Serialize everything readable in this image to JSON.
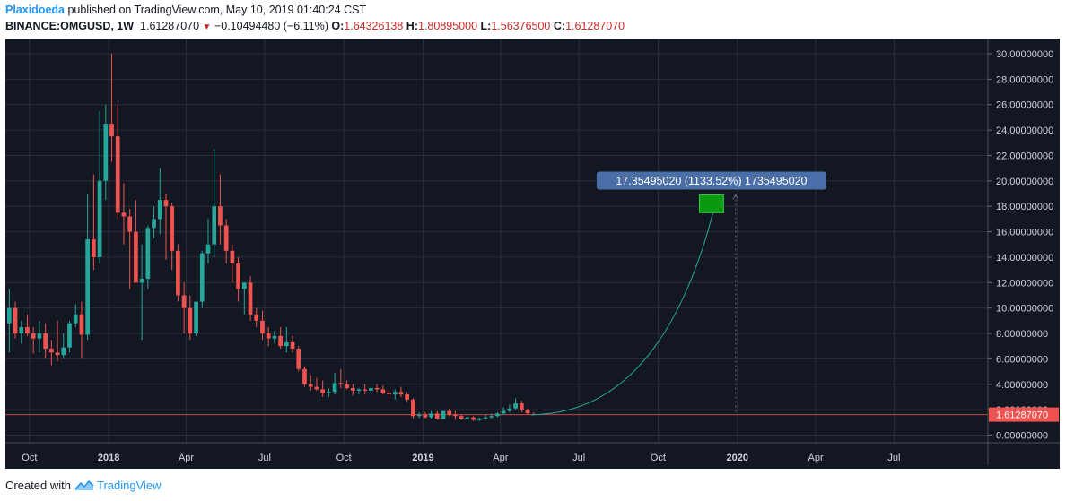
{
  "header": {
    "author": "Plaxidoeda",
    "published_text": "published on TradingView.com, May 10, 2019 01:40:24 CST",
    "symbol": "BINANCE:OMGUSD, 1W",
    "last_price": "1.61287070",
    "change_arrow": "▼",
    "change": "−0.10494480 (−6.11%)",
    "open_label": "O:",
    "open": "1.64326138",
    "high_label": "H:",
    "high": "1.80895000",
    "low_label": "L:",
    "low": "1.56376500",
    "close_label": "C:",
    "close": "1.61287070"
  },
  "footer": {
    "created_with": "Created with",
    "brand": "TradingView"
  },
  "colors": {
    "background": "#131722",
    "grid": "#2a2e39",
    "up": "#26a69a",
    "down": "#ef5350",
    "price_line": "#ef5350",
    "curve": "#26a69a",
    "target_box": "#0a9a12",
    "label_box": "#4a6ea8",
    "axis_text": "#d1d4dc"
  },
  "chart_data": {
    "type": "candlestick",
    "title": "",
    "xlabel": "",
    "ylabel": "",
    "ylim": [
      -0.6,
      31.2
    ],
    "y_ticks": [
      "30.00000000",
      "28.00000000",
      "26.00000000",
      "24.00000000",
      "22.00000000",
      "20.00000000",
      "18.00000000",
      "16.00000000",
      "14.00000000",
      "12.00000000",
      "10.00000000",
      "8.00000000",
      "6.00000000",
      "4.00000000",
      "2.00000000",
      "0.00000000"
    ],
    "y_tick_values": [
      30,
      28,
      26,
      24,
      22,
      20,
      18,
      16,
      14,
      12,
      10,
      8,
      6,
      4,
      2,
      0
    ],
    "x_ticks": [
      "Oct",
      "2018",
      "Apr",
      "Jul",
      "Oct",
      "2019",
      "Apr",
      "Jul",
      "Oct",
      "2020",
      "Apr",
      "Jul"
    ],
    "x_tick_dates": [
      "2017-10-01",
      "2018-01-01",
      "2018-04-01",
      "2018-07-01",
      "2018-10-01",
      "2019-01-01",
      "2019-04-01",
      "2019-07-01",
      "2019-10-01",
      "2020-01-01",
      "2020-04-01",
      "2020-07-01"
    ],
    "x_tick_bold": [
      false,
      true,
      false,
      false,
      false,
      true,
      false,
      false,
      false,
      true,
      false,
      false
    ],
    "x_range": [
      "2017-09-03",
      "2020-10-18"
    ],
    "current_price": 1.6128707,
    "current_price_label": "1.61287070",
    "projection": {
      "from": {
        "date": "2019-05-06",
        "value": 1.61
      },
      "to": {
        "date": "2019-12-09",
        "value": 18.9
      },
      "target_box": {
        "date_start": "2019-11-18",
        "date_end": "2019-12-16",
        "low": 17.5,
        "high": 18.9
      },
      "dashed_line_date": "2019-12-30",
      "label": "17.35495020 (1133.52%) 1735495020"
    },
    "candles": [
      {
        "date": "2017-09-04",
        "o": 8.8,
        "h": 11.5,
        "l": 6.5,
        "c": 10.0
      },
      {
        "date": "2017-09-11",
        "o": 10.0,
        "h": 10.5,
        "l": 7.6,
        "c": 8.0
      },
      {
        "date": "2017-09-18",
        "o": 8.0,
        "h": 9.0,
        "l": 7.2,
        "c": 8.5
      },
      {
        "date": "2017-09-25",
        "o": 8.5,
        "h": 9.5,
        "l": 7.8,
        "c": 8.0
      },
      {
        "date": "2017-10-02",
        "o": 8.0,
        "h": 8.5,
        "l": 6.4,
        "c": 7.6
      },
      {
        "date": "2017-10-09",
        "o": 7.6,
        "h": 9.0,
        "l": 6.5,
        "c": 8.0
      },
      {
        "date": "2017-10-16",
        "o": 8.0,
        "h": 8.8,
        "l": 6.0,
        "c": 6.8
      },
      {
        "date": "2017-10-23",
        "o": 6.8,
        "h": 7.5,
        "l": 5.5,
        "c": 6.5
      },
      {
        "date": "2017-10-30",
        "o": 6.5,
        "h": 9.0,
        "l": 5.8,
        "c": 6.3
      },
      {
        "date": "2017-11-06",
        "o": 6.3,
        "h": 8.0,
        "l": 6.0,
        "c": 6.9
      },
      {
        "date": "2017-11-13",
        "o": 6.9,
        "h": 9.0,
        "l": 6.5,
        "c": 8.8
      },
      {
        "date": "2017-11-20",
        "o": 8.8,
        "h": 10.3,
        "l": 8.5,
        "c": 9.5
      },
      {
        "date": "2017-11-27",
        "o": 9.5,
        "h": 10.5,
        "l": 6.0,
        "c": 7.9
      },
      {
        "date": "2017-12-04",
        "o": 7.9,
        "h": 19.0,
        "l": 7.5,
        "c": 15.4
      },
      {
        "date": "2017-12-11",
        "o": 15.4,
        "h": 20.5,
        "l": 13.0,
        "c": 14.0
      },
      {
        "date": "2017-12-18",
        "o": 14.0,
        "h": 25.5,
        "l": 13.5,
        "c": 20.0
      },
      {
        "date": "2017-12-25",
        "o": 20.0,
        "h": 26.0,
        "l": 18.5,
        "c": 24.5
      },
      {
        "date": "2018-01-01",
        "o": 24.5,
        "h": 30.0,
        "l": 21.5,
        "c": 23.5
      },
      {
        "date": "2018-01-08",
        "o": 23.5,
        "h": 26.0,
        "l": 17.0,
        "c": 17.5
      },
      {
        "date": "2018-01-15",
        "o": 17.5,
        "h": 19.8,
        "l": 15.0,
        "c": 17.2
      },
      {
        "date": "2018-01-22",
        "o": 17.2,
        "h": 17.8,
        "l": 11.5,
        "c": 16.0
      },
      {
        "date": "2018-01-29",
        "o": 16.0,
        "h": 18.5,
        "l": 12.0,
        "c": 12.0
      },
      {
        "date": "2018-02-05",
        "o": 12.0,
        "h": 15.0,
        "l": 7.5,
        "c": 12.3
      },
      {
        "date": "2018-02-12",
        "o": 12.3,
        "h": 16.5,
        "l": 11.5,
        "c": 16.3
      },
      {
        "date": "2018-02-19",
        "o": 16.3,
        "h": 18.0,
        "l": 15.5,
        "c": 17.0
      },
      {
        "date": "2018-02-26",
        "o": 17.0,
        "h": 21.0,
        "l": 15.8,
        "c": 18.5
      },
      {
        "date": "2018-03-05",
        "o": 18.5,
        "h": 19.0,
        "l": 13.8,
        "c": 18.0
      },
      {
        "date": "2018-03-12",
        "o": 18.0,
        "h": 18.3,
        "l": 13.0,
        "c": 14.5
      },
      {
        "date": "2018-03-19",
        "o": 14.5,
        "h": 15.0,
        "l": 10.5,
        "c": 11.0
      },
      {
        "date": "2018-03-26",
        "o": 11.0,
        "h": 12.0,
        "l": 8.0,
        "c": 10.0
      },
      {
        "date": "2018-04-02",
        "o": 10.0,
        "h": 11.0,
        "l": 7.5,
        "c": 8.0
      },
      {
        "date": "2018-04-09",
        "o": 8.0,
        "h": 10.5,
        "l": 7.8,
        "c": 10.5
      },
      {
        "date": "2018-04-16",
        "o": 10.5,
        "h": 14.5,
        "l": 10.0,
        "c": 14.3
      },
      {
        "date": "2018-04-23",
        "o": 14.3,
        "h": 17.0,
        "l": 13.5,
        "c": 15.0
      },
      {
        "date": "2018-04-30",
        "o": 15.0,
        "h": 22.5,
        "l": 14.0,
        "c": 18.0
      },
      {
        "date": "2018-05-07",
        "o": 18.0,
        "h": 20.5,
        "l": 15.0,
        "c": 16.5
      },
      {
        "date": "2018-05-14",
        "o": 16.5,
        "h": 17.0,
        "l": 13.5,
        "c": 14.5
      },
      {
        "date": "2018-05-21",
        "o": 14.5,
        "h": 15.0,
        "l": 12.0,
        "c": 13.5
      },
      {
        "date": "2018-05-28",
        "o": 13.5,
        "h": 14.0,
        "l": 10.5,
        "c": 11.5
      },
      {
        "date": "2018-06-04",
        "o": 11.5,
        "h": 12.0,
        "l": 9.5,
        "c": 12.0
      },
      {
        "date": "2018-06-11",
        "o": 12.0,
        "h": 12.5,
        "l": 9.0,
        "c": 9.5
      },
      {
        "date": "2018-06-18",
        "o": 9.5,
        "h": 10.0,
        "l": 8.5,
        "c": 9.0
      },
      {
        "date": "2018-06-25",
        "o": 9.0,
        "h": 9.8,
        "l": 7.5,
        "c": 8.0
      },
      {
        "date": "2018-07-02",
        "o": 8.0,
        "h": 8.5,
        "l": 7.0,
        "c": 7.6
      },
      {
        "date": "2018-07-09",
        "o": 7.6,
        "h": 8.2,
        "l": 7.2,
        "c": 7.8
      },
      {
        "date": "2018-07-16",
        "o": 7.8,
        "h": 8.5,
        "l": 6.8,
        "c": 7.0
      },
      {
        "date": "2018-07-23",
        "o": 7.0,
        "h": 8.5,
        "l": 6.5,
        "c": 7.3
      },
      {
        "date": "2018-07-30",
        "o": 7.3,
        "h": 7.8,
        "l": 6.5,
        "c": 6.8
      },
      {
        "date": "2018-08-06",
        "o": 6.8,
        "h": 7.0,
        "l": 5.0,
        "c": 5.2
      },
      {
        "date": "2018-08-13",
        "o": 5.2,
        "h": 5.4,
        "l": 3.8,
        "c": 4.0
      },
      {
        "date": "2018-08-20",
        "o": 4.0,
        "h": 4.7,
        "l": 3.5,
        "c": 3.8
      },
      {
        "date": "2018-08-27",
        "o": 3.8,
        "h": 4.5,
        "l": 3.5,
        "c": 3.6
      },
      {
        "date": "2018-09-03",
        "o": 3.6,
        "h": 4.3,
        "l": 3.0,
        "c": 3.3
      },
      {
        "date": "2018-09-10",
        "o": 3.3,
        "h": 3.7,
        "l": 3.0,
        "c": 3.4
      },
      {
        "date": "2018-09-17",
        "o": 3.4,
        "h": 4.9,
        "l": 3.2,
        "c": 4.1
      },
      {
        "date": "2018-09-24",
        "o": 4.1,
        "h": 5.2,
        "l": 3.7,
        "c": 4.0
      },
      {
        "date": "2018-10-01",
        "o": 4.0,
        "h": 4.3,
        "l": 3.6,
        "c": 3.7
      },
      {
        "date": "2018-10-08",
        "o": 3.7,
        "h": 4.0,
        "l": 3.1,
        "c": 3.5
      },
      {
        "date": "2018-10-15",
        "o": 3.5,
        "h": 3.7,
        "l": 3.2,
        "c": 3.6
      },
      {
        "date": "2018-10-22",
        "o": 3.6,
        "h": 4.0,
        "l": 3.2,
        "c": 3.5
      },
      {
        "date": "2018-10-29",
        "o": 3.5,
        "h": 3.8,
        "l": 3.3,
        "c": 3.7
      },
      {
        "date": "2018-11-05",
        "o": 3.7,
        "h": 4.0,
        "l": 3.4,
        "c": 3.6
      },
      {
        "date": "2018-11-12",
        "o": 3.6,
        "h": 3.9,
        "l": 3.2,
        "c": 3.3
      },
      {
        "date": "2018-11-19",
        "o": 3.3,
        "h": 3.6,
        "l": 2.9,
        "c": 3.2
      },
      {
        "date": "2018-11-26",
        "o": 3.2,
        "h": 3.6,
        "l": 2.8,
        "c": 3.4
      },
      {
        "date": "2018-12-03",
        "o": 3.4,
        "h": 3.8,
        "l": 3.0,
        "c": 3.2
      },
      {
        "date": "2018-12-10",
        "o": 3.2,
        "h": 3.4,
        "l": 2.6,
        "c": 2.8
      },
      {
        "date": "2018-12-17",
        "o": 2.8,
        "h": 2.9,
        "l": 1.3,
        "c": 1.5
      },
      {
        "date": "2018-12-24",
        "o": 1.5,
        "h": 1.8,
        "l": 1.3,
        "c": 1.6
      },
      {
        "date": "2018-12-31",
        "o": 1.6,
        "h": 1.8,
        "l": 1.3,
        "c": 1.4
      },
      {
        "date": "2019-01-07",
        "o": 1.4,
        "h": 1.9,
        "l": 1.3,
        "c": 1.7
      },
      {
        "date": "2019-01-14",
        "o": 1.7,
        "h": 1.9,
        "l": 1.2,
        "c": 1.3
      },
      {
        "date": "2019-01-21",
        "o": 1.3,
        "h": 1.9,
        "l": 1.3,
        "c": 1.9
      },
      {
        "date": "2019-01-28",
        "o": 1.9,
        "h": 2.1,
        "l": 1.5,
        "c": 1.6
      },
      {
        "date": "2019-02-04",
        "o": 1.6,
        "h": 1.9,
        "l": 1.2,
        "c": 1.5
      },
      {
        "date": "2019-02-11",
        "o": 1.5,
        "h": 1.6,
        "l": 1.2,
        "c": 1.3
      },
      {
        "date": "2019-02-18",
        "o": 1.3,
        "h": 1.5,
        "l": 1.2,
        "c": 1.4
      },
      {
        "date": "2019-02-25",
        "o": 1.4,
        "h": 1.5,
        "l": 1.1,
        "c": 1.2
      },
      {
        "date": "2019-03-04",
        "o": 1.2,
        "h": 1.4,
        "l": 1.1,
        "c": 1.3
      },
      {
        "date": "2019-03-11",
        "o": 1.3,
        "h": 1.6,
        "l": 1.2,
        "c": 1.4
      },
      {
        "date": "2019-03-18",
        "o": 1.4,
        "h": 1.7,
        "l": 1.3,
        "c": 1.5
      },
      {
        "date": "2019-03-25",
        "o": 1.5,
        "h": 1.8,
        "l": 1.4,
        "c": 1.7
      },
      {
        "date": "2019-04-01",
        "o": 1.7,
        "h": 2.2,
        "l": 1.6,
        "c": 1.9
      },
      {
        "date": "2019-04-08",
        "o": 1.9,
        "h": 2.4,
        "l": 1.8,
        "c": 2.1
      },
      {
        "date": "2019-04-15",
        "o": 2.1,
        "h": 2.9,
        "l": 2.0,
        "c": 2.5
      },
      {
        "date": "2019-04-22",
        "o": 2.5,
        "h": 2.7,
        "l": 1.8,
        "c": 2.0
      },
      {
        "date": "2019-04-29",
        "o": 2.0,
        "h": 2.1,
        "l": 1.6,
        "c": 1.72
      },
      {
        "date": "2019-05-06",
        "o": 1.64,
        "h": 1.81,
        "l": 1.56,
        "c": 1.61
      }
    ]
  }
}
